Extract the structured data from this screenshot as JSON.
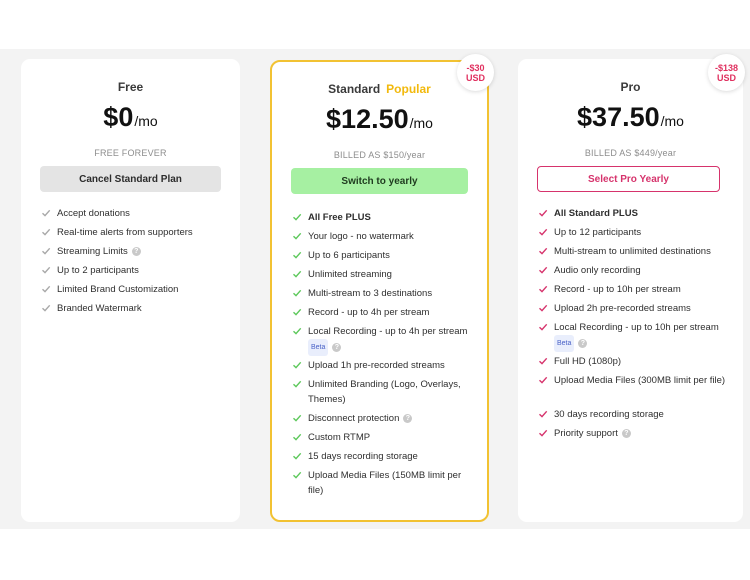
{
  "plans": {
    "free": {
      "name": "Free",
      "price": "$0",
      "per": "/mo",
      "billed": "FREE FOREVER",
      "cta": "Cancel Standard Plan",
      "features": [
        {
          "text": "Accept donations"
        },
        {
          "text": "Real-time alerts from supporters"
        },
        {
          "text": "Streaming Limits",
          "help": "?"
        },
        {
          "text": "Up to 2 participants"
        },
        {
          "text": "Limited Brand Customization"
        },
        {
          "text": "Branded Watermark"
        }
      ]
    },
    "standard": {
      "name": "Standard",
      "popular": "Popular",
      "price": "$12.50",
      "per": "/mo",
      "billed": "BILLED AS $150/year",
      "cta": "Switch to yearly",
      "badge_line1": "-$30",
      "badge_line2": "USD",
      "features": [
        {
          "text": "All Free PLUS"
        },
        {
          "text": "Your logo - no watermark"
        },
        {
          "text": "Up to 6 participants"
        },
        {
          "text": "Unlimited streaming"
        },
        {
          "text": "Multi-stream to 3 destinations"
        },
        {
          "text": "Record - up to 4h per stream"
        },
        {
          "text": "Local Recording - up to 4h per stream",
          "beta": "Beta",
          "help": "?"
        },
        {
          "text": "Upload 1h pre-recorded streams"
        },
        {
          "text": "Unlimited Branding (Logo, Overlays, Themes)"
        },
        {
          "text": "Disconnect protection",
          "help": "?"
        },
        {
          "text": "Custom RTMP"
        },
        {
          "text": "15 days recording storage"
        },
        {
          "text": "Upload Media Files (150MB limit per file)"
        }
      ]
    },
    "pro": {
      "name": "Pro",
      "price": "$37.50",
      "per": "/mo",
      "billed": "BILLED AS $449/year",
      "cta": "Select Pro Yearly",
      "badge_line1": "-$138",
      "badge_line2": "USD",
      "features": [
        {
          "text": "All Standard PLUS"
        },
        {
          "text": "Up to 12 participants"
        },
        {
          "text": "Multi-stream to unlimited destinations"
        },
        {
          "text": "Audio only recording"
        },
        {
          "text": "Record - up to 10h per stream"
        },
        {
          "text": "Upload 2h pre-recorded streams"
        },
        {
          "text": "Local Recording - up to 10h per stream",
          "beta": "Beta",
          "help": "?"
        },
        {
          "text": "Full HD (1080p)"
        },
        {
          "text": "Upload Media Files (300MB limit per file)"
        },
        {
          "text": "30 days recording storage"
        },
        {
          "text": "Priority support",
          "help": "?"
        }
      ]
    }
  },
  "colors": {
    "check_free": "#a8a8a8",
    "check_standard": "#5cc85a",
    "check_pro": "#d6336c",
    "popular": "#f2b90d",
    "badge_text": "#e0305f"
  },
  "icons": {
    "check": "check-icon",
    "help": "help-circle-icon"
  }
}
